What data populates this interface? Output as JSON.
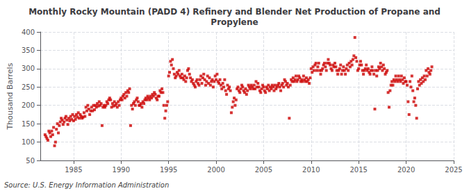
{
  "chart_data": {
    "type": "scatter",
    "title": "Monthly Rocky Mountain (PADD 4) Refinery and Blender Net Production of Propane and\nPropylene",
    "ylabel": "Thousand Barrels",
    "annotations": [
      "Source: U.S. Energy Information Administration"
    ],
    "color": "#cc0000",
    "marker": "square",
    "grid": true,
    "xlim": [
      1981.5,
      2025
    ],
    "ylim": [
      50,
      400
    ],
    "xticks": [
      1985,
      1990,
      1995,
      2000,
      2005,
      2010,
      2015,
      2020,
      2025
    ],
    "yticks": [
      50,
      100,
      150,
      200,
      250,
      300,
      350,
      400
    ],
    "x": [
      1982.0,
      1982.1,
      1982.2,
      1982.3,
      1982.4,
      1982.5,
      1982.6,
      1982.7,
      1982.8,
      1982.9,
      1983.0,
      1983.1,
      1983.2,
      1983.3,
      1983.4,
      1983.5,
      1983.6,
      1983.7,
      1983.8,
      1983.9,
      1984.0,
      1984.1,
      1984.2,
      1984.3,
      1984.4,
      1984.5,
      1984.6,
      1984.7,
      1984.8,
      1984.9,
      1985.0,
      1985.1,
      1985.2,
      1985.3,
      1985.4,
      1985.5,
      1985.6,
      1985.7,
      1985.8,
      1985.9,
      1986.0,
      1986.1,
      1986.2,
      1986.3,
      1986.4,
      1986.5,
      1986.6,
      1986.7,
      1986.8,
      1986.9,
      1987.0,
      1987.1,
      1987.2,
      1987.3,
      1987.4,
      1987.5,
      1987.6,
      1987.7,
      1987.8,
      1987.9,
      1988.0,
      1988.1,
      1988.2,
      1988.3,
      1988.4,
      1988.5,
      1988.6,
      1988.7,
      1988.8,
      1988.9,
      1989.0,
      1989.1,
      1989.2,
      1989.3,
      1989.4,
      1989.5,
      1989.6,
      1989.7,
      1989.8,
      1989.9,
      1990.0,
      1990.1,
      1990.2,
      1990.3,
      1990.4,
      1990.5,
      1990.6,
      1990.7,
      1990.8,
      1990.9,
      1991.0,
      1991.1,
      1991.2,
      1991.3,
      1991.4,
      1991.5,
      1991.6,
      1991.7,
      1991.8,
      1991.9,
      1992.0,
      1992.1,
      1992.2,
      1992.3,
      1992.4,
      1992.5,
      1992.6,
      1992.7,
      1992.8,
      1992.9,
      1993.0,
      1993.1,
      1993.2,
      1993.3,
      1993.4,
      1993.5,
      1993.6,
      1993.7,
      1993.8,
      1993.9,
      1994.0,
      1994.1,
      1994.2,
      1994.3,
      1994.4,
      1994.5,
      1994.6,
      1994.7,
      1994.8,
      1994.9,
      1995.0,
      1995.1,
      1995.2,
      1995.3,
      1995.4,
      1995.5,
      1995.6,
      1995.7,
      1995.8,
      1995.9,
      1996.0,
      1996.1,
      1996.2,
      1996.3,
      1996.4,
      1996.5,
      1996.6,
      1996.7,
      1996.8,
      1996.9,
      1997.0,
      1997.1,
      1997.2,
      1997.3,
      1997.4,
      1997.5,
      1997.6,
      1997.7,
      1997.8,
      1997.9,
      1998.0,
      1998.1,
      1998.2,
      1998.3,
      1998.4,
      1998.5,
      1998.6,
      1998.7,
      1998.8,
      1998.9,
      1999.0,
      1999.1,
      1999.2,
      1999.3,
      1999.4,
      1999.5,
      1999.6,
      1999.7,
      1999.8,
      1999.9,
      2000.0,
      2000.1,
      2000.2,
      2000.3,
      2000.4,
      2000.5,
      2000.6,
      2000.7,
      2000.8,
      2000.9,
      2001.0,
      2001.1,
      2001.2,
      2001.3,
      2001.4,
      2001.5,
      2001.6,
      2001.7,
      2001.8,
      2001.9,
      2002.0,
      2002.1,
      2002.2,
      2002.3,
      2002.4,
      2002.5,
      2002.6,
      2002.7,
      2002.8,
      2002.9,
      2003.0,
      2003.1,
      2003.2,
      2003.3,
      2003.4,
      2003.5,
      2003.6,
      2003.7,
      2003.8,
      2003.9,
      2004.0,
      2004.1,
      2004.2,
      2004.3,
      2004.4,
      2004.5,
      2004.6,
      2004.7,
      2004.8,
      2004.9,
      2005.0,
      2005.1,
      2005.2,
      2005.3,
      2005.4,
      2005.5,
      2005.6,
      2005.7,
      2005.8,
      2005.9,
      2006.0,
      2006.1,
      2006.2,
      2006.3,
      2006.4,
      2006.5,
      2006.6,
      2006.7,
      2006.8,
      2006.9,
      2007.0,
      2007.1,
      2007.2,
      2007.3,
      2007.4,
      2007.5,
      2007.6,
      2007.7,
      2007.8,
      2007.9,
      2008.0,
      2008.1,
      2008.2,
      2008.3,
      2008.4,
      2008.5,
      2008.6,
      2008.7,
      2008.8,
      2008.9,
      2009.0,
      2009.1,
      2009.2,
      2009.3,
      2009.4,
      2009.5,
      2009.6,
      2009.7,
      2009.8,
      2009.9,
      2010.0,
      2010.1,
      2010.2,
      2010.3,
      2010.4,
      2010.5,
      2010.6,
      2010.7,
      2010.8,
      2010.9,
      2011.0,
      2011.1,
      2011.2,
      2011.3,
      2011.4,
      2011.5,
      2011.6,
      2011.7,
      2011.8,
      2011.9,
      2012.0,
      2012.1,
      2012.2,
      2012.3,
      2012.4,
      2012.5,
      2012.6,
      2012.7,
      2012.8,
      2012.9,
      2013.0,
      2013.1,
      2013.2,
      2013.3,
      2013.4,
      2013.5,
      2013.6,
      2013.7,
      2013.8,
      2013.9,
      2014.0,
      2014.1,
      2014.2,
      2014.3,
      2014.4,
      2014.5,
      2014.6,
      2014.7,
      2014.8,
      2014.9,
      2015.0,
      2015.1,
      2015.2,
      2015.3,
      2015.4,
      2015.5,
      2015.6,
      2015.7,
      2015.8,
      2015.9,
      2016.0,
      2016.1,
      2016.2,
      2016.3,
      2016.4,
      2016.5,
      2016.6,
      2016.7,
      2016.8,
      2016.9,
      2017.0,
      2017.1,
      2017.2,
      2017.3,
      2017.4,
      2017.5,
      2017.6,
      2017.7,
      2017.8,
      2017.9,
      2018.0,
      2018.1,
      2018.2,
      2018.3,
      2018.4,
      2018.5,
      2018.6,
      2018.7,
      2018.8,
      2018.9,
      2019.0,
      2019.1,
      2019.2,
      2019.3,
      2019.4,
      2019.5,
      2019.6,
      2019.7,
      2019.8,
      2019.9,
      2020.0,
      2020.1,
      2020.2,
      2020.3,
      2020.4,
      2020.5,
      2020.6,
      2020.7,
      2020.8,
      2020.9,
      2021.0,
      2021.1,
      2021.2,
      2021.3,
      2021.4,
      2021.5,
      2021.6,
      2021.7,
      2021.8,
      2021.9,
      2022.0,
      2022.1,
      2022.2,
      2022.3,
      2022.4,
      2022.5,
      2022.6,
      2022.7
    ],
    "values": [
      120,
      115,
      110,
      105,
      130,
      125,
      115,
      130,
      120,
      140,
      90,
      100,
      135,
      150,
      125,
      145,
      155,
      165,
      160,
      148,
      155,
      165,
      170,
      160,
      148,
      165,
      158,
      170,
      162,
      175,
      158,
      170,
      162,
      175,
      168,
      180,
      165,
      175,
      170,
      165,
      168,
      180,
      170,
      195,
      185,
      200,
      190,
      175,
      185,
      195,
      185,
      200,
      188,
      200,
      195,
      205,
      198,
      210,
      200,
      205,
      145,
      195,
      200,
      195,
      200,
      210,
      205,
      215,
      220,
      215,
      195,
      205,
      198,
      210,
      200,
      205,
      195,
      210,
      200,
      215,
      220,
      215,
      225,
      230,
      220,
      235,
      225,
      240,
      235,
      245,
      145,
      200,
      190,
      205,
      210,
      200,
      215,
      220,
      210,
      200,
      200,
      205,
      195,
      210,
      205,
      215,
      220,
      215,
      225,
      220,
      215,
      225,
      220,
      230,
      225,
      235,
      230,
      220,
      215,
      225,
      225,
      240,
      235,
      245,
      235,
      200,
      165,
      185,
      200,
      210,
      280,
      290,
      320,
      310,
      325,
      300,
      285,
      275,
      280,
      290,
      285,
      295,
      280,
      275,
      285,
      275,
      270,
      280,
      265,
      275,
      295,
      300,
      285,
      275,
      265,
      270,
      260,
      255,
      250,
      265,
      270,
      260,
      255,
      270,
      280,
      260,
      275,
      285,
      270,
      255,
      265,
      280,
      260,
      275,
      255,
      265,
      270,
      250,
      265,
      280,
      270,
      285,
      265,
      260,
      270,
      255,
      245,
      260,
      250,
      270,
      240,
      230,
      255,
      245,
      250,
      240,
      180,
      195,
      210,
      220,
      200,
      215,
      245,
      250,
      240,
      235,
      245,
      255,
      250,
      240,
      235,
      245,
      230,
      240,
      255,
      250,
      245,
      255,
      250,
      245,
      255,
      245,
      265,
      250,
      260,
      250,
      240,
      235,
      245,
      255,
      250,
      240,
      235,
      250,
      245,
      255,
      240,
      250,
      245,
      255,
      250,
      240,
      255,
      245,
      250,
      255,
      260,
      250,
      240,
      255,
      260,
      250,
      270,
      265,
      255,
      260,
      250,
      165,
      255,
      270,
      265,
      275,
      265,
      270,
      280,
      265,
      270,
      280,
      275,
      265,
      270,
      265,
      280,
      270,
      265,
      275,
      265,
      270,
      260,
      275,
      300,
      290,
      305,
      295,
      310,
      315,
      295,
      305,
      315,
      295,
      285,
      295,
      300,
      310,
      315,
      305,
      295,
      315,
      325,
      315,
      310,
      300,
      295,
      310,
      305,
      315,
      305,
      295,
      285,
      295,
      300,
      310,
      285,
      295,
      305,
      295,
      285,
      300,
      310,
      295,
      315,
      305,
      320,
      310,
      325,
      335,
      385,
      330,
      320,
      295,
      300,
      310,
      320,
      310,
      295,
      285,
      295,
      300,
      310,
      295,
      300,
      290,
      285,
      295,
      305,
      295,
      285,
      190,
      295,
      280,
      295,
      305,
      300,
      315,
      305,
      295,
      310,
      300,
      285,
      290,
      295,
      235,
      195,
      240,
      255,
      265,
      255,
      270,
      265,
      280,
      270,
      265,
      280,
      270,
      265,
      280,
      270,
      260,
      275,
      265,
      265,
      255,
      210,
      175,
      265,
      250,
      280,
      240,
      210,
      220,
      200,
      165,
      245,
      265,
      255,
      270,
      260,
      275,
      265,
      280,
      270,
      295,
      280,
      300,
      290,
      285,
      295,
      305
    ]
  }
}
